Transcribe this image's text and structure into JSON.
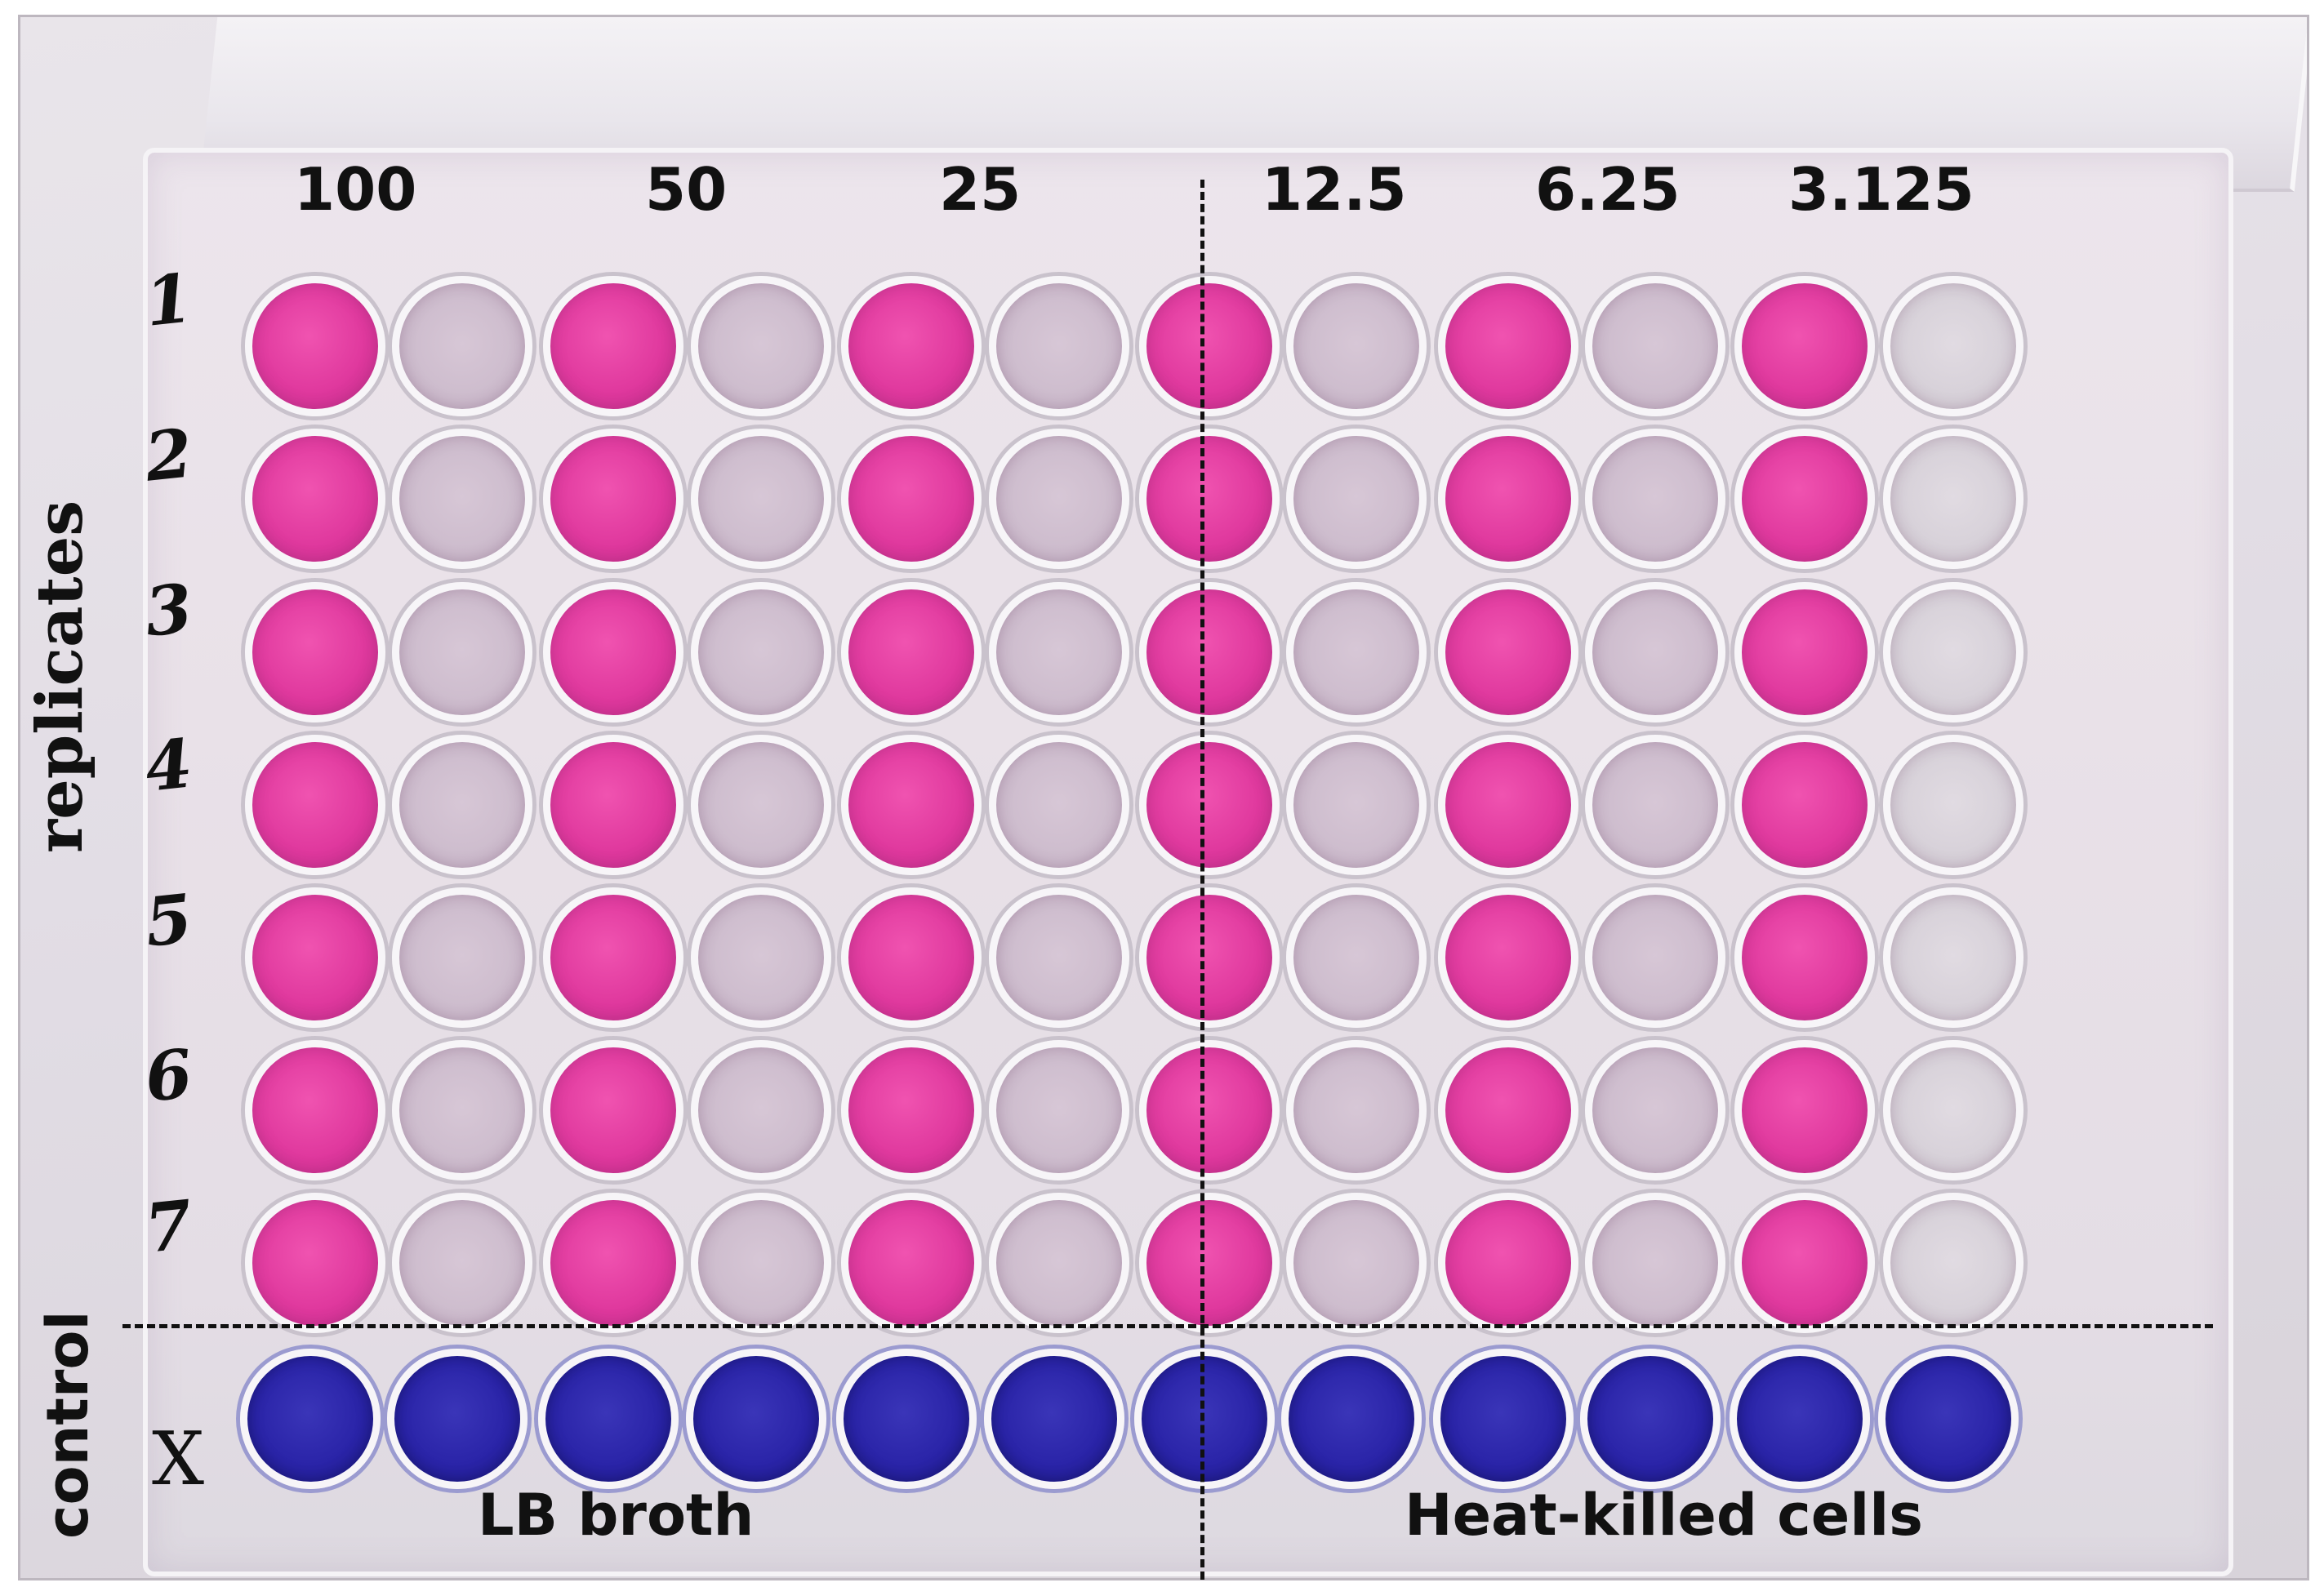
{
  "concentrations": [
    "100",
    "50",
    "25",
    "12.5",
    "6.25",
    "3.125"
  ],
  "replicate_marks": [
    "1",
    "2",
    "3",
    "4",
    "5",
    "6",
    "7"
  ],
  "control_mark": "X",
  "labels": {
    "replicates": "replicates",
    "control": "control",
    "lb_broth": "LB broth",
    "heat_killed": "Heat-killed cells"
  },
  "colors": {
    "pink_well": "#e0399e",
    "pale_well": "#cdbccd",
    "blue_well": "#2a24a8",
    "dashed_line": "#111111"
  }
}
